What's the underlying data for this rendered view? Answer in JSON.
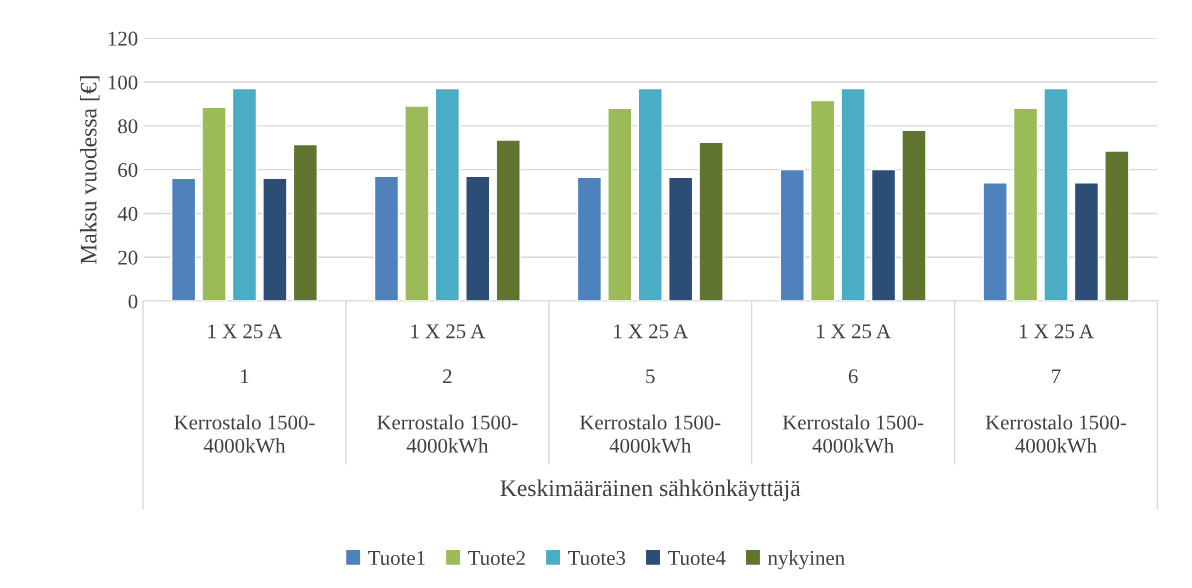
{
  "chart_data": {
    "type": "bar",
    "ylabel": "Maksu vuodessa [€]",
    "annotations": [
      "Keskimääräinen sähkönkäyttäjä"
    ],
    "categories": [
      "1 X 25 A\n1\nKerrostalo 1500-\n4000kWh",
      "1 X 25 A\n2\nKerrostalo 1500-\n4000kWh",
      "1 X 25 A\n5\nKerrostalo 1500-\n4000kWh",
      "1 X 25 A\n6\nKerrostalo 1500-\n4000kWh",
      "1 X 25 A\n7\nKerrostalo 1500-\n4000kWh"
    ],
    "series": [
      {
        "name": "Tuote1",
        "color": "#4f81bd",
        "values": [
          56,
          57,
          56.5,
          60,
          54
        ]
      },
      {
        "name": "Tuote2",
        "color": "#9bbb59",
        "values": [
          88.5,
          89,
          88,
          91.5,
          88
        ]
      },
      {
        "name": "Tuote3",
        "color": "#4bacc6",
        "values": [
          97,
          97,
          97,
          97,
          97
        ]
      },
      {
        "name": "Tuote4",
        "color": "#2c4d75",
        "values": [
          56,
          57,
          56.5,
          60,
          54
        ]
      },
      {
        "name": "nykyinen",
        "color": "#5f7530",
        "values": [
          71.5,
          73.5,
          72.5,
          78,
          68.5
        ]
      }
    ],
    "ylim": [
      0,
      120
    ],
    "yticks": [
      0,
      20,
      40,
      60,
      80,
      100,
      120
    ],
    "grid": "y",
    "legend": "bottom"
  }
}
